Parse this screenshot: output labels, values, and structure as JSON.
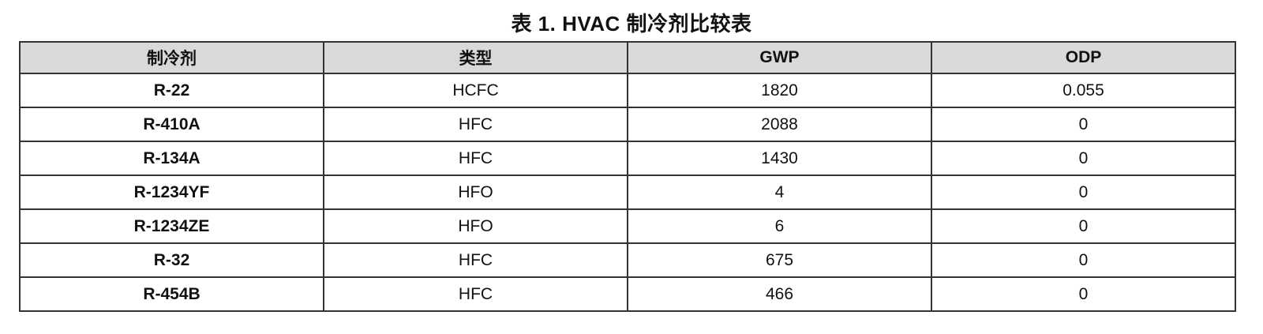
{
  "title": "表 1. HVAC 制冷剂比较表",
  "table": {
    "headers": [
      "制冷剂",
      "类型",
      "GWP",
      "ODP"
    ],
    "rows": [
      [
        "R-22",
        "HCFC",
        "1820",
        "0.055"
      ],
      [
        "R-410A",
        "HFC",
        "2088",
        "0"
      ],
      [
        "R-134A",
        "HFC",
        "1430",
        "0"
      ],
      [
        "R-1234YF",
        "HFO",
        "4",
        "0"
      ],
      [
        "R-1234ZE",
        "HFO",
        "6",
        "0"
      ],
      [
        "R-32",
        "HFC",
        "675",
        "0"
      ],
      [
        "R-454B",
        "HFC",
        "466",
        "0"
      ]
    ]
  }
}
